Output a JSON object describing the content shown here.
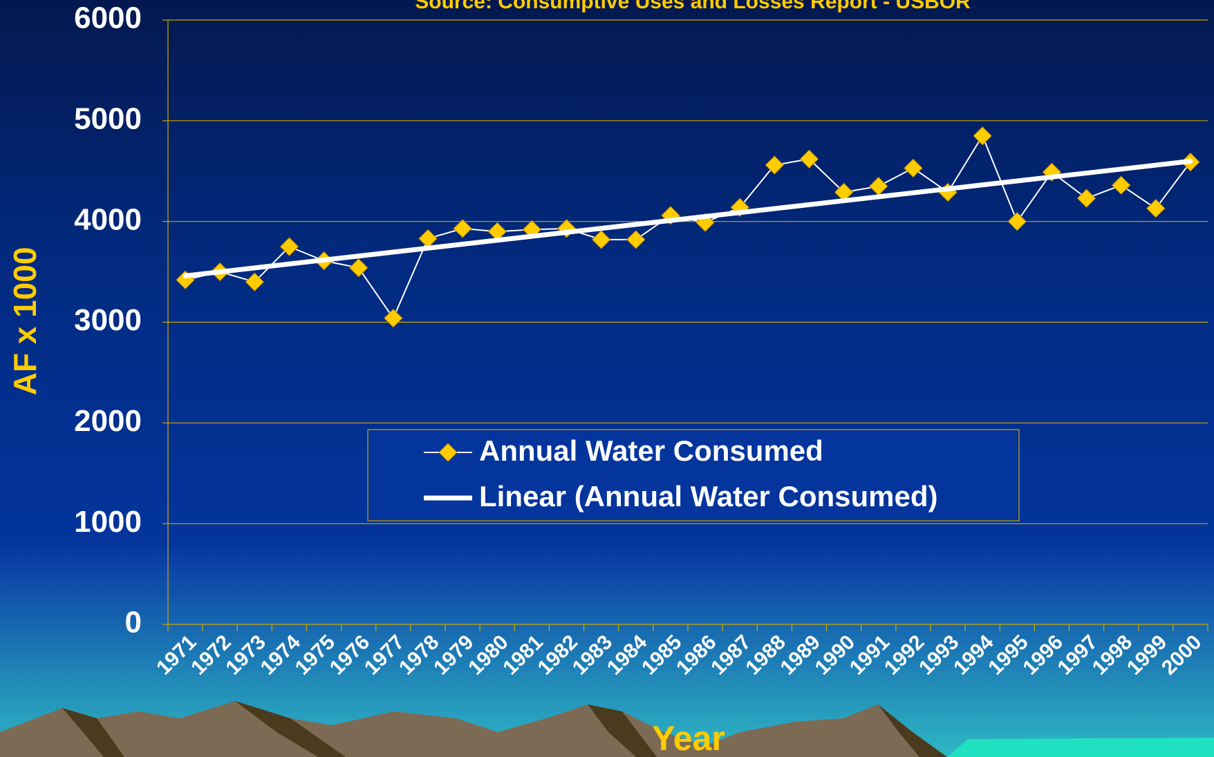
{
  "chart_data": {
    "type": "line",
    "subtitle": "Source: Consumptive Uses and Losses Report - USBOR",
    "x_label": "Year",
    "y_label": "AF x 1000",
    "categories": [
      "1971",
      "1972",
      "1973",
      "1974",
      "1975",
      "1976",
      "1977",
      "1978",
      "1979",
      "1980",
      "1981",
      "1982",
      "1983",
      "1984",
      "1985",
      "1986",
      "1987",
      "1988",
      "1989",
      "1990",
      "1991",
      "1992",
      "1993",
      "1994",
      "1995",
      "1996",
      "1997",
      "1998",
      "1999",
      "2000"
    ],
    "series": [
      {
        "name": "Annual Water Consumed",
        "color": "#ffcc00",
        "values": [
          3420,
          3500,
          3400,
          3750,
          3610,
          3540,
          3040,
          3830,
          3930,
          3900,
          3920,
          3930,
          3820,
          3820,
          4060,
          3990,
          4140,
          4560,
          4620,
          4290,
          4350,
          4530,
          4290,
          4850,
          4000,
          4490,
          4230,
          4360,
          4130,
          4590
        ]
      }
    ],
    "trendline": {
      "name": "Linear (Annual Water Consumed)",
      "color": "#ffffff"
    },
    "ylim": [
      0,
      6000
    ],
    "yticks": [
      0,
      1000,
      2000,
      3000,
      4000,
      5000,
      6000
    ],
    "grid": true
  }
}
